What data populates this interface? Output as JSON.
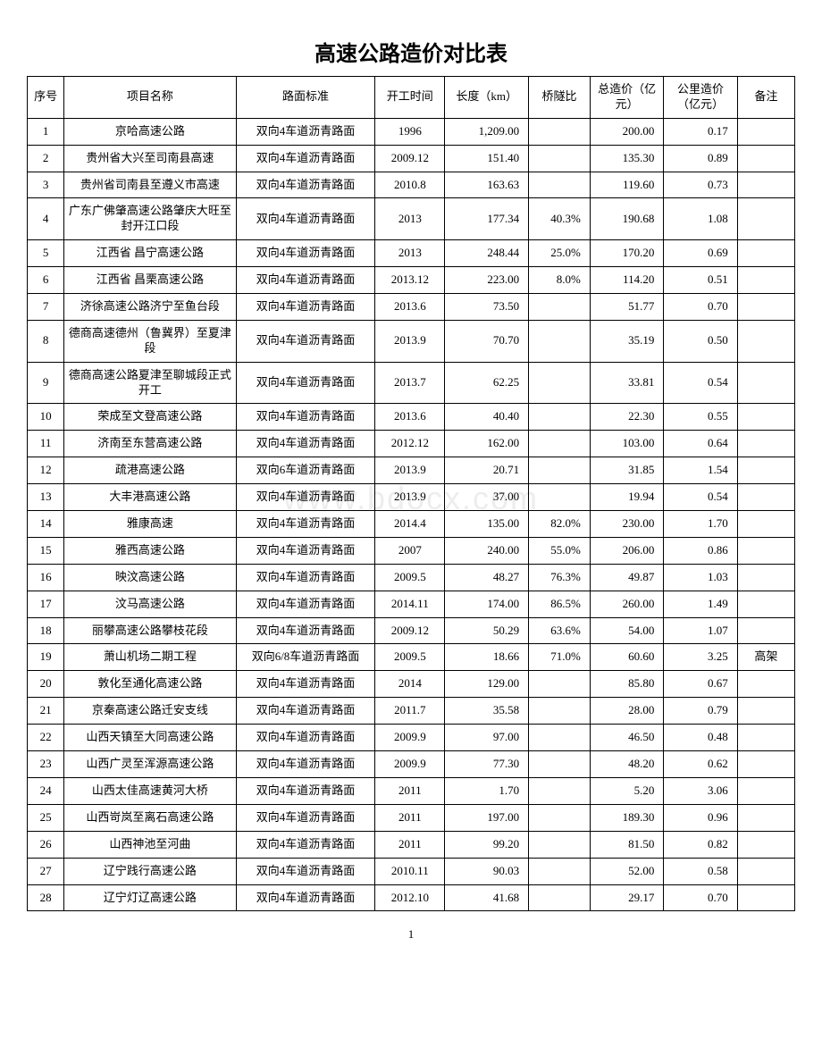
{
  "title": "高速公路造价对比表",
  "page_number": "1",
  "watermark": "www.bdocx.com",
  "columns": [
    "序号",
    "项目名称",
    "路面标准",
    "开工时间",
    "长度（km）",
    "桥隧比",
    "总造价（亿元）",
    "公里造价（亿元）",
    "备注"
  ],
  "rows": [
    {
      "idx": "1",
      "name": "京哈高速公路",
      "std": "双向4车道沥青路面",
      "start": "1996",
      "len": "1,209.00",
      "ratio": "",
      "total": "200.00",
      "perkm": "0.17",
      "note": ""
    },
    {
      "idx": "2",
      "name": "贵州省大兴至司南县高速",
      "std": "双向4车道沥青路面",
      "start": "2009.12",
      "len": "151.40",
      "ratio": "",
      "total": "135.30",
      "perkm": "0.89",
      "note": ""
    },
    {
      "idx": "3",
      "name": "贵州省司南县至遵义市高速",
      "std": "双向4车道沥青路面",
      "start": "2010.8",
      "len": "163.63",
      "ratio": "",
      "total": "119.60",
      "perkm": "0.73",
      "note": ""
    },
    {
      "idx": "4",
      "name": "广东广佛肇高速公路肇庆大旺至封开江口段",
      "std": "双向4车道沥青路面",
      "start": "2013",
      "len": "177.34",
      "ratio": "40.3%",
      "total": "190.68",
      "perkm": "1.08",
      "note": ""
    },
    {
      "idx": "5",
      "name": "江西省 昌宁高速公路",
      "std": "双向4车道沥青路面",
      "start": "2013",
      "len": "248.44",
      "ratio": "25.0%",
      "total": "170.20",
      "perkm": "0.69",
      "note": ""
    },
    {
      "idx": "6",
      "name": "江西省 昌栗高速公路",
      "std": "双向4车道沥青路面",
      "start": "2013.12",
      "len": "223.00",
      "ratio": "8.0%",
      "total": "114.20",
      "perkm": "0.51",
      "note": ""
    },
    {
      "idx": "7",
      "name": "济徐高速公路济宁至鱼台段",
      "std": "双向4车道沥青路面",
      "start": "2013.6",
      "len": "73.50",
      "ratio": "",
      "total": "51.77",
      "perkm": "0.70",
      "note": ""
    },
    {
      "idx": "8",
      "name": "德商高速德州（鲁冀界）至夏津段",
      "std": "双向4车道沥青路面",
      "start": "2013.9",
      "len": "70.70",
      "ratio": "",
      "total": "35.19",
      "perkm": "0.50",
      "note": ""
    },
    {
      "idx": "9",
      "name": "德商高速公路夏津至聊城段正式开工",
      "std": "双向4车道沥青路面",
      "start": "2013.7",
      "len": "62.25",
      "ratio": "",
      "total": "33.81",
      "perkm": "0.54",
      "note": ""
    },
    {
      "idx": "10",
      "name": "荣成至文登高速公路",
      "std": "双向4车道沥青路面",
      "start": "2013.6",
      "len": "40.40",
      "ratio": "",
      "total": "22.30",
      "perkm": "0.55",
      "note": ""
    },
    {
      "idx": "11",
      "name": "济南至东营高速公路",
      "std": "双向4车道沥青路面",
      "start": "2012.12",
      "len": "162.00",
      "ratio": "",
      "total": "103.00",
      "perkm": "0.64",
      "note": ""
    },
    {
      "idx": "12",
      "name": "疏港高速公路",
      "std": "双向6车道沥青路面",
      "start": "2013.9",
      "len": "20.71",
      "ratio": "",
      "total": "31.85",
      "perkm": "1.54",
      "note": ""
    },
    {
      "idx": "13",
      "name": "大丰港高速公路",
      "std": "双向4车道沥青路面",
      "start": "2013.9",
      "len": "37.00",
      "ratio": "",
      "total": "19.94",
      "perkm": "0.54",
      "note": ""
    },
    {
      "idx": "14",
      "name": "雅康高速",
      "std": "双向4车道沥青路面",
      "start": "2014.4",
      "len": "135.00",
      "ratio": "82.0%",
      "total": "230.00",
      "perkm": "1.70",
      "note": ""
    },
    {
      "idx": "15",
      "name": "雅西高速公路",
      "std": "双向4车道沥青路面",
      "start": "2007",
      "len": "240.00",
      "ratio": "55.0%",
      "total": "206.00",
      "perkm": "0.86",
      "note": ""
    },
    {
      "idx": "16",
      "name": "映汶高速公路",
      "std": "双向4车道沥青路面",
      "start": "2009.5",
      "len": "48.27",
      "ratio": "76.3%",
      "total": "49.87",
      "perkm": "1.03",
      "note": ""
    },
    {
      "idx": "17",
      "name": "汶马高速公路",
      "std": "双向4车道沥青路面",
      "start": "2014.11",
      "len": "174.00",
      "ratio": "86.5%",
      "total": "260.00",
      "perkm": "1.49",
      "note": ""
    },
    {
      "idx": "18",
      "name": "丽攀高速公路攀枝花段",
      "std": "双向4车道沥青路面",
      "start": "2009.12",
      "len": "50.29",
      "ratio": "63.6%",
      "total": "54.00",
      "perkm": "1.07",
      "note": ""
    },
    {
      "idx": "19",
      "name": "萧山机场二期工程",
      "std": "双向6/8车道沥青路面",
      "start": "2009.5",
      "len": "18.66",
      "ratio": "71.0%",
      "total": "60.60",
      "perkm": "3.25",
      "note": "高架"
    },
    {
      "idx": "20",
      "name": "敦化至通化高速公路",
      "std": "双向4车道沥青路面",
      "start": "2014",
      "len": "129.00",
      "ratio": "",
      "total": "85.80",
      "perkm": "0.67",
      "note": ""
    },
    {
      "idx": "21",
      "name": "京秦高速公路迁安支线",
      "std": "双向4车道沥青路面",
      "start": "2011.7",
      "len": "35.58",
      "ratio": "",
      "total": "28.00",
      "perkm": "0.79",
      "note": ""
    },
    {
      "idx": "22",
      "name": "山西天镇至大同高速公路",
      "std": "双向4车道沥青路面",
      "start": "2009.9",
      "len": "97.00",
      "ratio": "",
      "total": "46.50",
      "perkm": "0.48",
      "note": ""
    },
    {
      "idx": "23",
      "name": "山西广灵至浑源高速公路",
      "std": "双向4车道沥青路面",
      "start": "2009.9",
      "len": "77.30",
      "ratio": "",
      "total": "48.20",
      "perkm": "0.62",
      "note": ""
    },
    {
      "idx": "24",
      "name": "山西太佳高速黄河大桥",
      "std": "双向4车道沥青路面",
      "start": "2011",
      "len": "1.70",
      "ratio": "",
      "total": "5.20",
      "perkm": "3.06",
      "note": ""
    },
    {
      "idx": "25",
      "name": "山西岢岚至离石高速公路",
      "std": "双向4车道沥青路面",
      "start": "2011",
      "len": "197.00",
      "ratio": "",
      "total": "189.30",
      "perkm": "0.96",
      "note": ""
    },
    {
      "idx": "26",
      "name": "山西神池至河曲",
      "std": "双向4车道沥青路面",
      "start": "2011",
      "len": "99.20",
      "ratio": "",
      "total": "81.50",
      "perkm": "0.82",
      "note": ""
    },
    {
      "idx": "27",
      "name": "辽宁践行高速公路",
      "std": "双向4车道沥青路面",
      "start": "2010.11",
      "len": "90.03",
      "ratio": "",
      "total": "52.00",
      "perkm": "0.58",
      "note": ""
    },
    {
      "idx": "28",
      "name": "辽宁灯辽高速公路",
      "std": "双向4车道沥青路面",
      "start": "2012.10",
      "len": "41.68",
      "ratio": "",
      "total": "29.17",
      "perkm": "0.70",
      "note": ""
    }
  ]
}
